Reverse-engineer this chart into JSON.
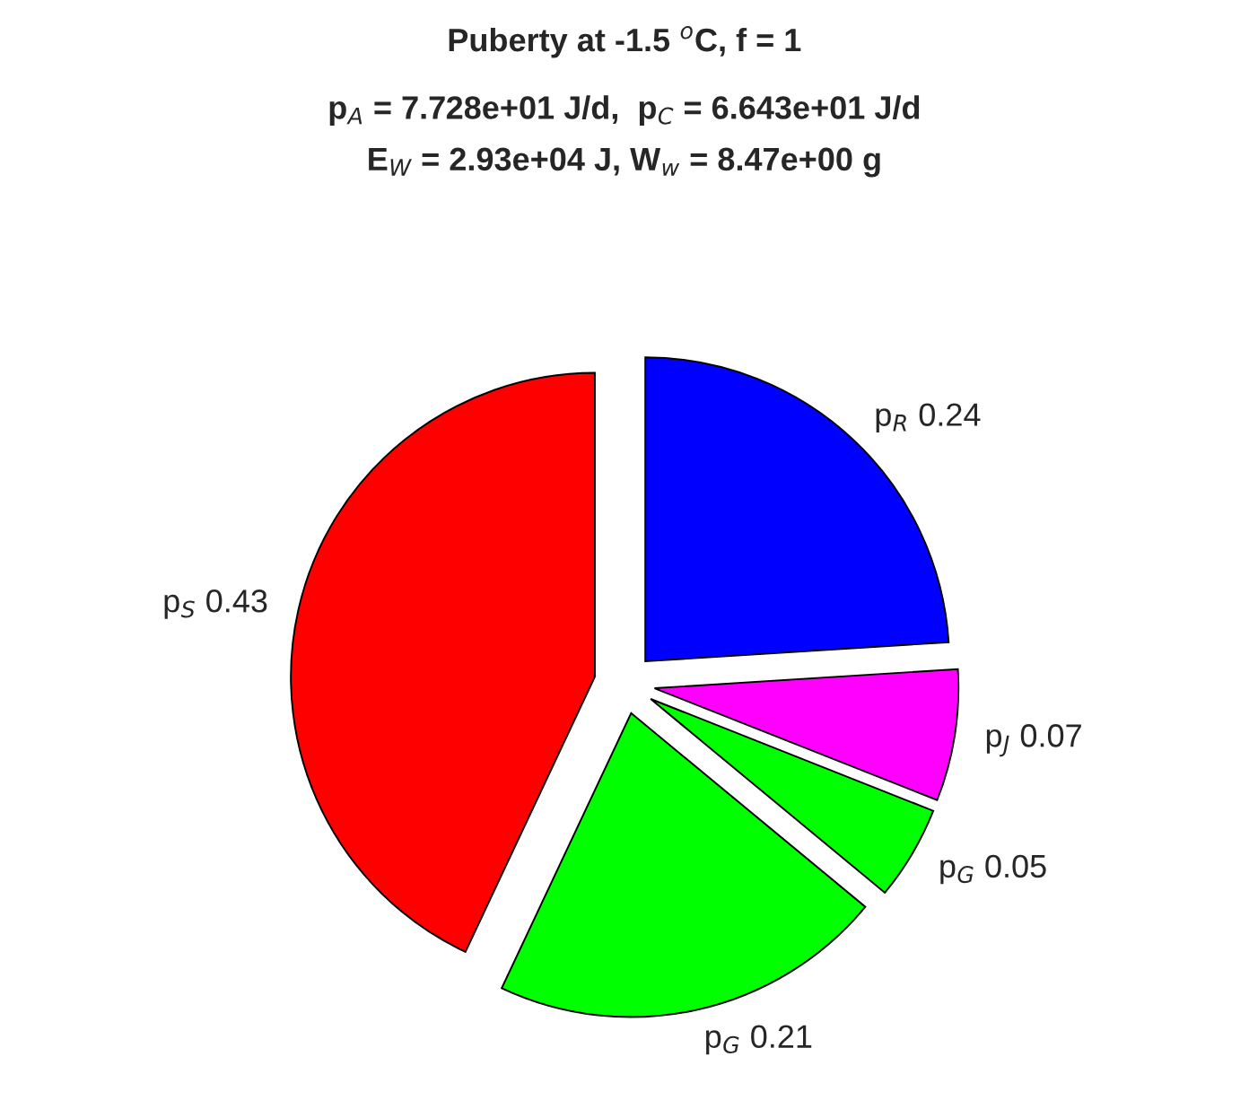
{
  "chart_data": {
    "type": "pie",
    "title": "Puberty at -1.5 $^{o}$C, f = 1",
    "subtitle": "p$_{A}$ = 7.728e+01 J/d,  p$_{C}$ = 6.643e+01 J/d\nE$_{W}$ = 2.93e+04 J, W$_{w}$ = 8.47e+00 g",
    "categories": [
      "p$_{R}$",
      "p$_{J}$",
      "p$_{G}$",
      "p$_{G}$",
      "p$_{S}$"
    ],
    "values": [
      0.24,
      0.07,
      0.05,
      0.21,
      0.43
    ],
    "colors": [
      "#0000ff",
      "#ff00ff",
      "#00ff00",
      "#00ff00",
      "#ff0000"
    ],
    "data_labels": true
  }
}
